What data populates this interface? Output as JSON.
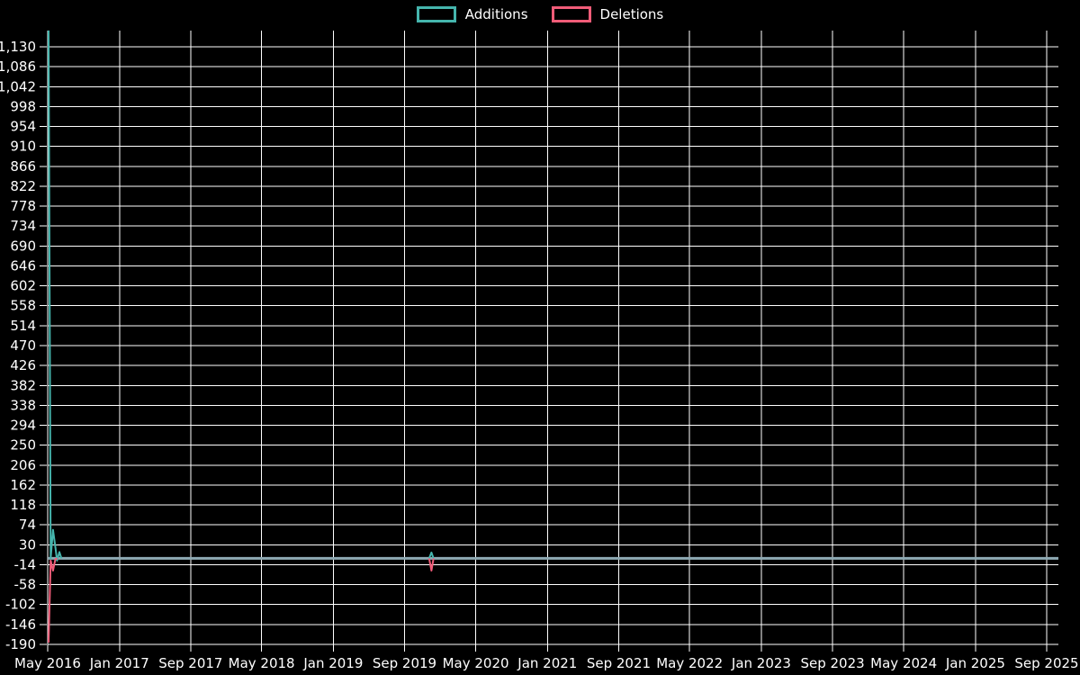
{
  "legend": {
    "items": [
      {
        "label": "Additions",
        "color": "#45B5AD"
      },
      {
        "label": "Deletions",
        "color": "#F05C78"
      }
    ]
  },
  "colors": {
    "background": "#000000",
    "grid": "#FFFFFF",
    "text": "#FFFFFF",
    "additions": "#45B5AD",
    "deletions": "#F05C78",
    "baseline": "#8EA9B3"
  },
  "chart_data": {
    "type": "line",
    "title": "",
    "xlabel": "",
    "ylabel": "",
    "grid": true,
    "legend_position": "top-center",
    "ylim": [
      -190,
      1130
    ],
    "xlim": [
      "2016-05-01",
      "2025-10-10"
    ],
    "y_axis": {
      "ticks": [
        {
          "label": "1,130",
          "value": 1130
        },
        {
          "label": "1,086",
          "value": 1086
        },
        {
          "label": "1,042",
          "value": 1042
        },
        {
          "label": "998",
          "value": 998
        },
        {
          "label": "954",
          "value": 954
        },
        {
          "label": "910",
          "value": 910
        },
        {
          "label": "866",
          "value": 866
        },
        {
          "label": "822",
          "value": 822
        },
        {
          "label": "778",
          "value": 778
        },
        {
          "label": "734",
          "value": 734
        },
        {
          "label": "690",
          "value": 690
        },
        {
          "label": "646",
          "value": 646
        },
        {
          "label": "602",
          "value": 602
        },
        {
          "label": "558",
          "value": 558
        },
        {
          "label": "514",
          "value": 514
        },
        {
          "label": "470",
          "value": 470
        },
        {
          "label": "426",
          "value": 426
        },
        {
          "label": "382",
          "value": 382
        },
        {
          "label": "338",
          "value": 338
        },
        {
          "label": "294",
          "value": 294
        },
        {
          "label": "250",
          "value": 250
        },
        {
          "label": "206",
          "value": 206
        },
        {
          "label": "162",
          "value": 162
        },
        {
          "label": "118",
          "value": 118
        },
        {
          "label": "74",
          "value": 74
        },
        {
          "label": "30",
          "value": 30
        },
        {
          "label": "-14",
          "value": -14
        },
        {
          "label": "-58",
          "value": -58
        },
        {
          "label": "-102",
          "value": -102
        },
        {
          "label": "-146",
          "value": -146
        },
        {
          "label": "-190",
          "value": -190
        }
      ]
    },
    "x_axis": {
      "ticks": [
        {
          "label": "May 2016",
          "date": "2016-05-01"
        },
        {
          "label": "Jan 2017",
          "date": "2017-01-01"
        },
        {
          "label": "Sep 2017",
          "date": "2017-09-01"
        },
        {
          "label": "May 2018",
          "date": "2018-05-01"
        },
        {
          "label": "Jan 2019",
          "date": "2019-01-01"
        },
        {
          "label": "Sep 2019",
          "date": "2019-09-01"
        },
        {
          "label": "May 2020",
          "date": "2020-05-01"
        },
        {
          "label": "Jan 2021",
          "date": "2021-01-01"
        },
        {
          "label": "Sep 2021",
          "date": "2021-09-01"
        },
        {
          "label": "May 2022",
          "date": "2022-05-01"
        },
        {
          "label": "Jan 2023",
          "date": "2023-01-01"
        },
        {
          "label": "Sep 2023",
          "date": "2023-09-01"
        },
        {
          "label": "May 2024",
          "date": "2024-05-01"
        },
        {
          "label": "Jan 2025",
          "date": "2025-01-01"
        },
        {
          "label": "Sep 2025",
          "date": "2025-09-01"
        }
      ]
    },
    "baseline": {
      "value": 0,
      "color": "#8EA9B3"
    },
    "series": [
      {
        "name": "Additions",
        "color": "#45B5AD",
        "points": [
          [
            "2016-05-04",
            1166
          ],
          [
            "2016-05-11",
            0
          ],
          [
            "2016-05-19",
            63
          ],
          [
            "2016-05-27",
            25
          ],
          [
            "2016-06-02",
            -5
          ],
          [
            "2016-06-10",
            14
          ],
          [
            "2016-06-17",
            0
          ],
          [
            "2019-11-24",
            0
          ],
          [
            "2019-12-02",
            13
          ],
          [
            "2019-12-09",
            0
          ],
          [
            "2025-10-10",
            0
          ]
        ]
      },
      {
        "name": "Deletions",
        "color": "#F05C78",
        "points": [
          [
            "2016-05-04",
            -186
          ],
          [
            "2016-05-11",
            -5
          ],
          [
            "2016-05-19",
            -27
          ],
          [
            "2016-05-27",
            -2
          ],
          [
            "2016-06-03",
            0
          ],
          [
            "2019-11-24",
            0
          ],
          [
            "2019-12-02",
            -27
          ],
          [
            "2019-12-09",
            0
          ],
          [
            "2025-10-10",
            0
          ]
        ]
      }
    ]
  }
}
